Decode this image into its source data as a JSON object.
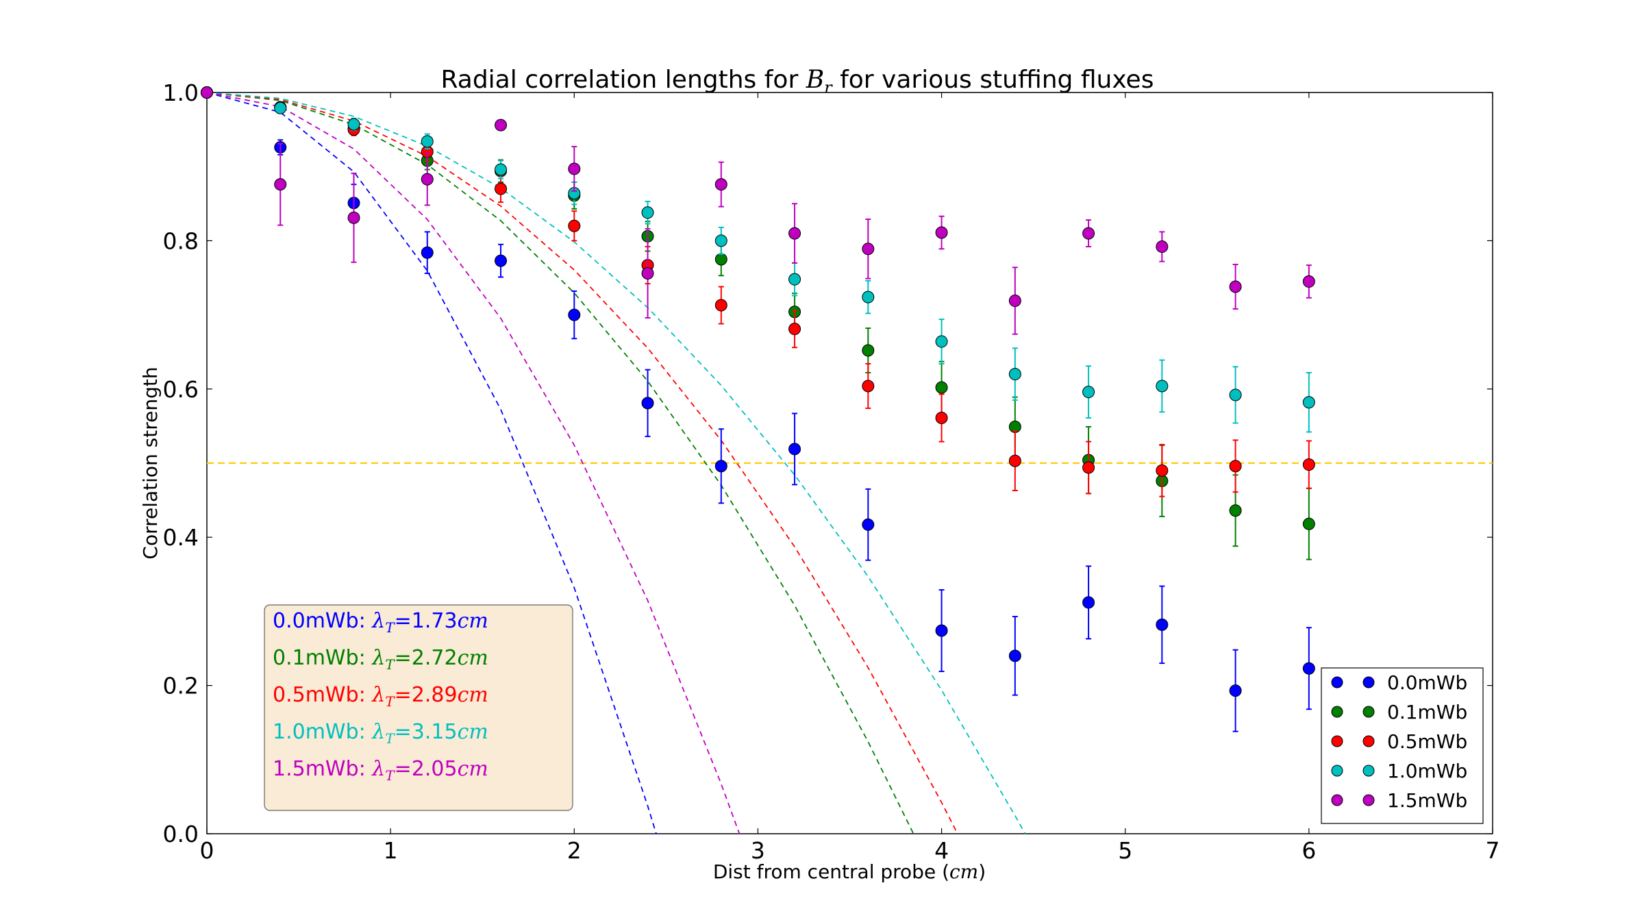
{
  "chart_data": {
    "type": "scatter",
    "title_prefix": "Radial correlation lengths for ",
    "title_math": "B",
    "title_math_sub": "r",
    "title_suffix": " for various stuffing fluxes",
    "xlabel_prefix": "Dist from central probe (",
    "xlabel_math": "cm",
    "xlabel_suffix": ")",
    "ylabel": "Correlation strength",
    "xlim": [
      0,
      7
    ],
    "ylim": [
      0.0,
      1.0
    ],
    "xticks": [
      "0",
      "1",
      "2",
      "3",
      "4",
      "5",
      "6",
      "7"
    ],
    "yticks": [
      "0.0",
      "0.2",
      "0.4",
      "0.6",
      "0.8",
      "1.0"
    ],
    "threshold": {
      "y": 0.5,
      "color": "#ffcc00"
    },
    "legend_position": "lower-right",
    "x": [
      0.0,
      0.4,
      0.8,
      1.2,
      1.6,
      2.0,
      2.4,
      2.8,
      3.2,
      3.6,
      4.0,
      4.4,
      4.8,
      5.2,
      5.6,
      6.0
    ],
    "series": [
      {
        "name": "0.0mWb",
        "color": "#0000ff",
        "lambda": 1.73,
        "annotation_prefix": "0.0mWb: ",
        "annotation_value": "=1.73",
        "values": [
          1.0,
          0.926,
          0.851,
          0.784,
          0.773,
          0.7,
          0.581,
          0.496,
          0.519,
          0.417,
          0.274,
          0.24,
          0.312,
          0.282,
          0.193,
          0.223
        ],
        "errors": [
          0,
          0.01,
          0.025,
          0.028,
          0.022,
          0.032,
          0.045,
          0.05,
          0.048,
          0.048,
          0.055,
          0.053,
          0.049,
          0.052,
          0.055,
          0.055
        ]
      },
      {
        "name": "0.1mWb",
        "color": "#007f00",
        "lambda": 2.72,
        "annotation_prefix": "0.1mWb: ",
        "annotation_value": "=2.72",
        "values": [
          1.0,
          0.98,
          0.951,
          0.908,
          0.894,
          0.861,
          0.806,
          0.775,
          0.704,
          0.652,
          0.602,
          0.549,
          0.504,
          0.476,
          0.436,
          0.418
        ],
        "errors": [
          0,
          0.005,
          0.008,
          0.012,
          0.015,
          0.018,
          0.02,
          0.022,
          0.025,
          0.03,
          0.035,
          0.04,
          0.045,
          0.048,
          0.048,
          0.048
        ]
      },
      {
        "name": "0.5mWb",
        "color": "#ff0000",
        "lambda": 2.89,
        "annotation_prefix": "0.5mWb: ",
        "annotation_value": "=2.89",
        "values": [
          1.0,
          0.98,
          0.95,
          0.92,
          0.87,
          0.82,
          0.767,
          0.713,
          0.681,
          0.604,
          0.561,
          0.503,
          0.494,
          0.49,
          0.496,
          0.498
        ],
        "errors": [
          0,
          0.005,
          0.008,
          0.012,
          0.018,
          0.02,
          0.025,
          0.025,
          0.025,
          0.03,
          0.032,
          0.04,
          0.035,
          0.035,
          0.035,
          0.032
        ]
      },
      {
        "name": "1.0mWb",
        "color": "#00bfbf",
        "lambda": 3.15,
        "annotation_prefix": "1.0mWb: ",
        "annotation_value": "=3.15",
        "values": [
          1.0,
          0.979,
          0.957,
          0.934,
          0.896,
          0.864,
          0.838,
          0.8,
          0.748,
          0.724,
          0.664,
          0.62,
          0.596,
          0.604,
          0.592,
          0.582
        ],
        "errors": [
          0,
          0.005,
          0.008,
          0.01,
          0.012,
          0.015,
          0.015,
          0.018,
          0.022,
          0.022,
          0.03,
          0.035,
          0.035,
          0.035,
          0.038,
          0.04
        ]
      },
      {
        "name": "1.5mWb",
        "color": "#bf00bf",
        "lambda": 2.05,
        "annotation_prefix": "1.5mWb: ",
        "annotation_value": "=2.05",
        "values": [
          1.0,
          0.876,
          0.831,
          0.883,
          0.956,
          0.897,
          0.756,
          0.876,
          0.81,
          0.789,
          0.811,
          0.719,
          0.81,
          0.792,
          0.738,
          0.745
        ],
        "errors": [
          0,
          0.055,
          0.06,
          0.035,
          0,
          0.03,
          0.06,
          0.03,
          0.04,
          0.04,
          0.022,
          0.045,
          0.018,
          0.02,
          0.03,
          0.022
        ]
      }
    ],
    "annotation_math_symbol": "λ",
    "annotation_math_sub": "T",
    "annotation_unit": "cm",
    "annotation_box_color": "#f9ebd5"
  }
}
